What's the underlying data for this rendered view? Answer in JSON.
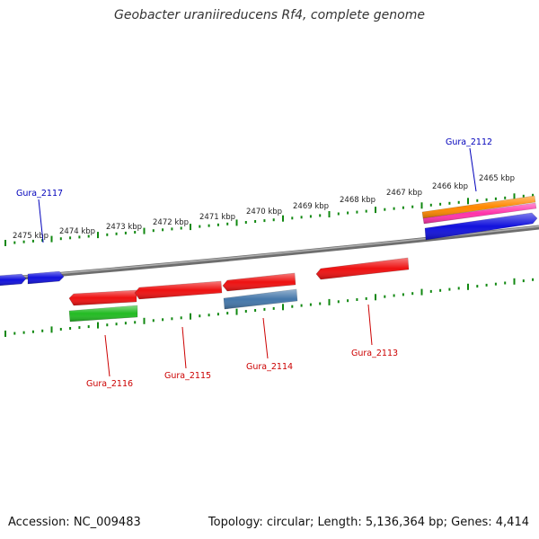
{
  "title": "Geobacter uraniireducens Rf4, complete genome",
  "accession": "Accession: NC_009483",
  "summary": "Topology: circular; Length: 5,136,364 bp; Genes: 4,414",
  "colors": {
    "backbone": "#808080",
    "tick": "#118811",
    "forward_label": "#0000bb",
    "reverse_label": "#cc0000"
  },
  "scale_labels": [
    "2475 kbp",
    "2474 kbp",
    "2473 kbp",
    "2472 kbp",
    "2471 kbp",
    "2470 kbp",
    "2469 kbp",
    "2468 kbp",
    "2467 kbp",
    "2466 kbp",
    "2465 kbp"
  ],
  "features": [
    {
      "id": "f-left-1",
      "label": "",
      "strand": "forward",
      "color": "#1111dd"
    },
    {
      "id": "f-left-2",
      "label": "",
      "strand": "forward",
      "color": "#1111dd"
    },
    {
      "id": "f-2112-a",
      "label": "",
      "strand": "forward",
      "color": "#ff8800"
    },
    {
      "id": "f-2112-b",
      "label": "",
      "strand": "forward",
      "color": "#ff33aa"
    },
    {
      "id": "f-2112-c",
      "label": "",
      "strand": "forward",
      "color": "#1111dd"
    },
    {
      "id": "f-2116-a",
      "label": "",
      "strand": "reverse",
      "color": "#ee1111"
    },
    {
      "id": "f-2116-b",
      "label": "",
      "strand": "reverse",
      "color": "#22bb22"
    },
    {
      "id": "f-2115",
      "label": "",
      "strand": "reverse",
      "color": "#ee1111"
    },
    {
      "id": "f-2114-a",
      "label": "",
      "strand": "reverse",
      "color": "#ee1111"
    },
    {
      "id": "f-2114-b",
      "label": "",
      "strand": "reverse",
      "color": "#4477aa"
    },
    {
      "id": "f-2113",
      "label": "",
      "strand": "reverse",
      "color": "#ee1111"
    }
  ],
  "gene_labels": [
    {
      "text": "Gura_2117",
      "strand": "forward"
    },
    {
      "text": "Gura_2112",
      "strand": "forward"
    },
    {
      "text": "Gura_2116",
      "strand": "reverse"
    },
    {
      "text": "Gura_2115",
      "strand": "reverse"
    },
    {
      "text": "Gura_2114",
      "strand": "reverse"
    },
    {
      "text": "Gura_2113",
      "strand": "reverse"
    }
  ]
}
